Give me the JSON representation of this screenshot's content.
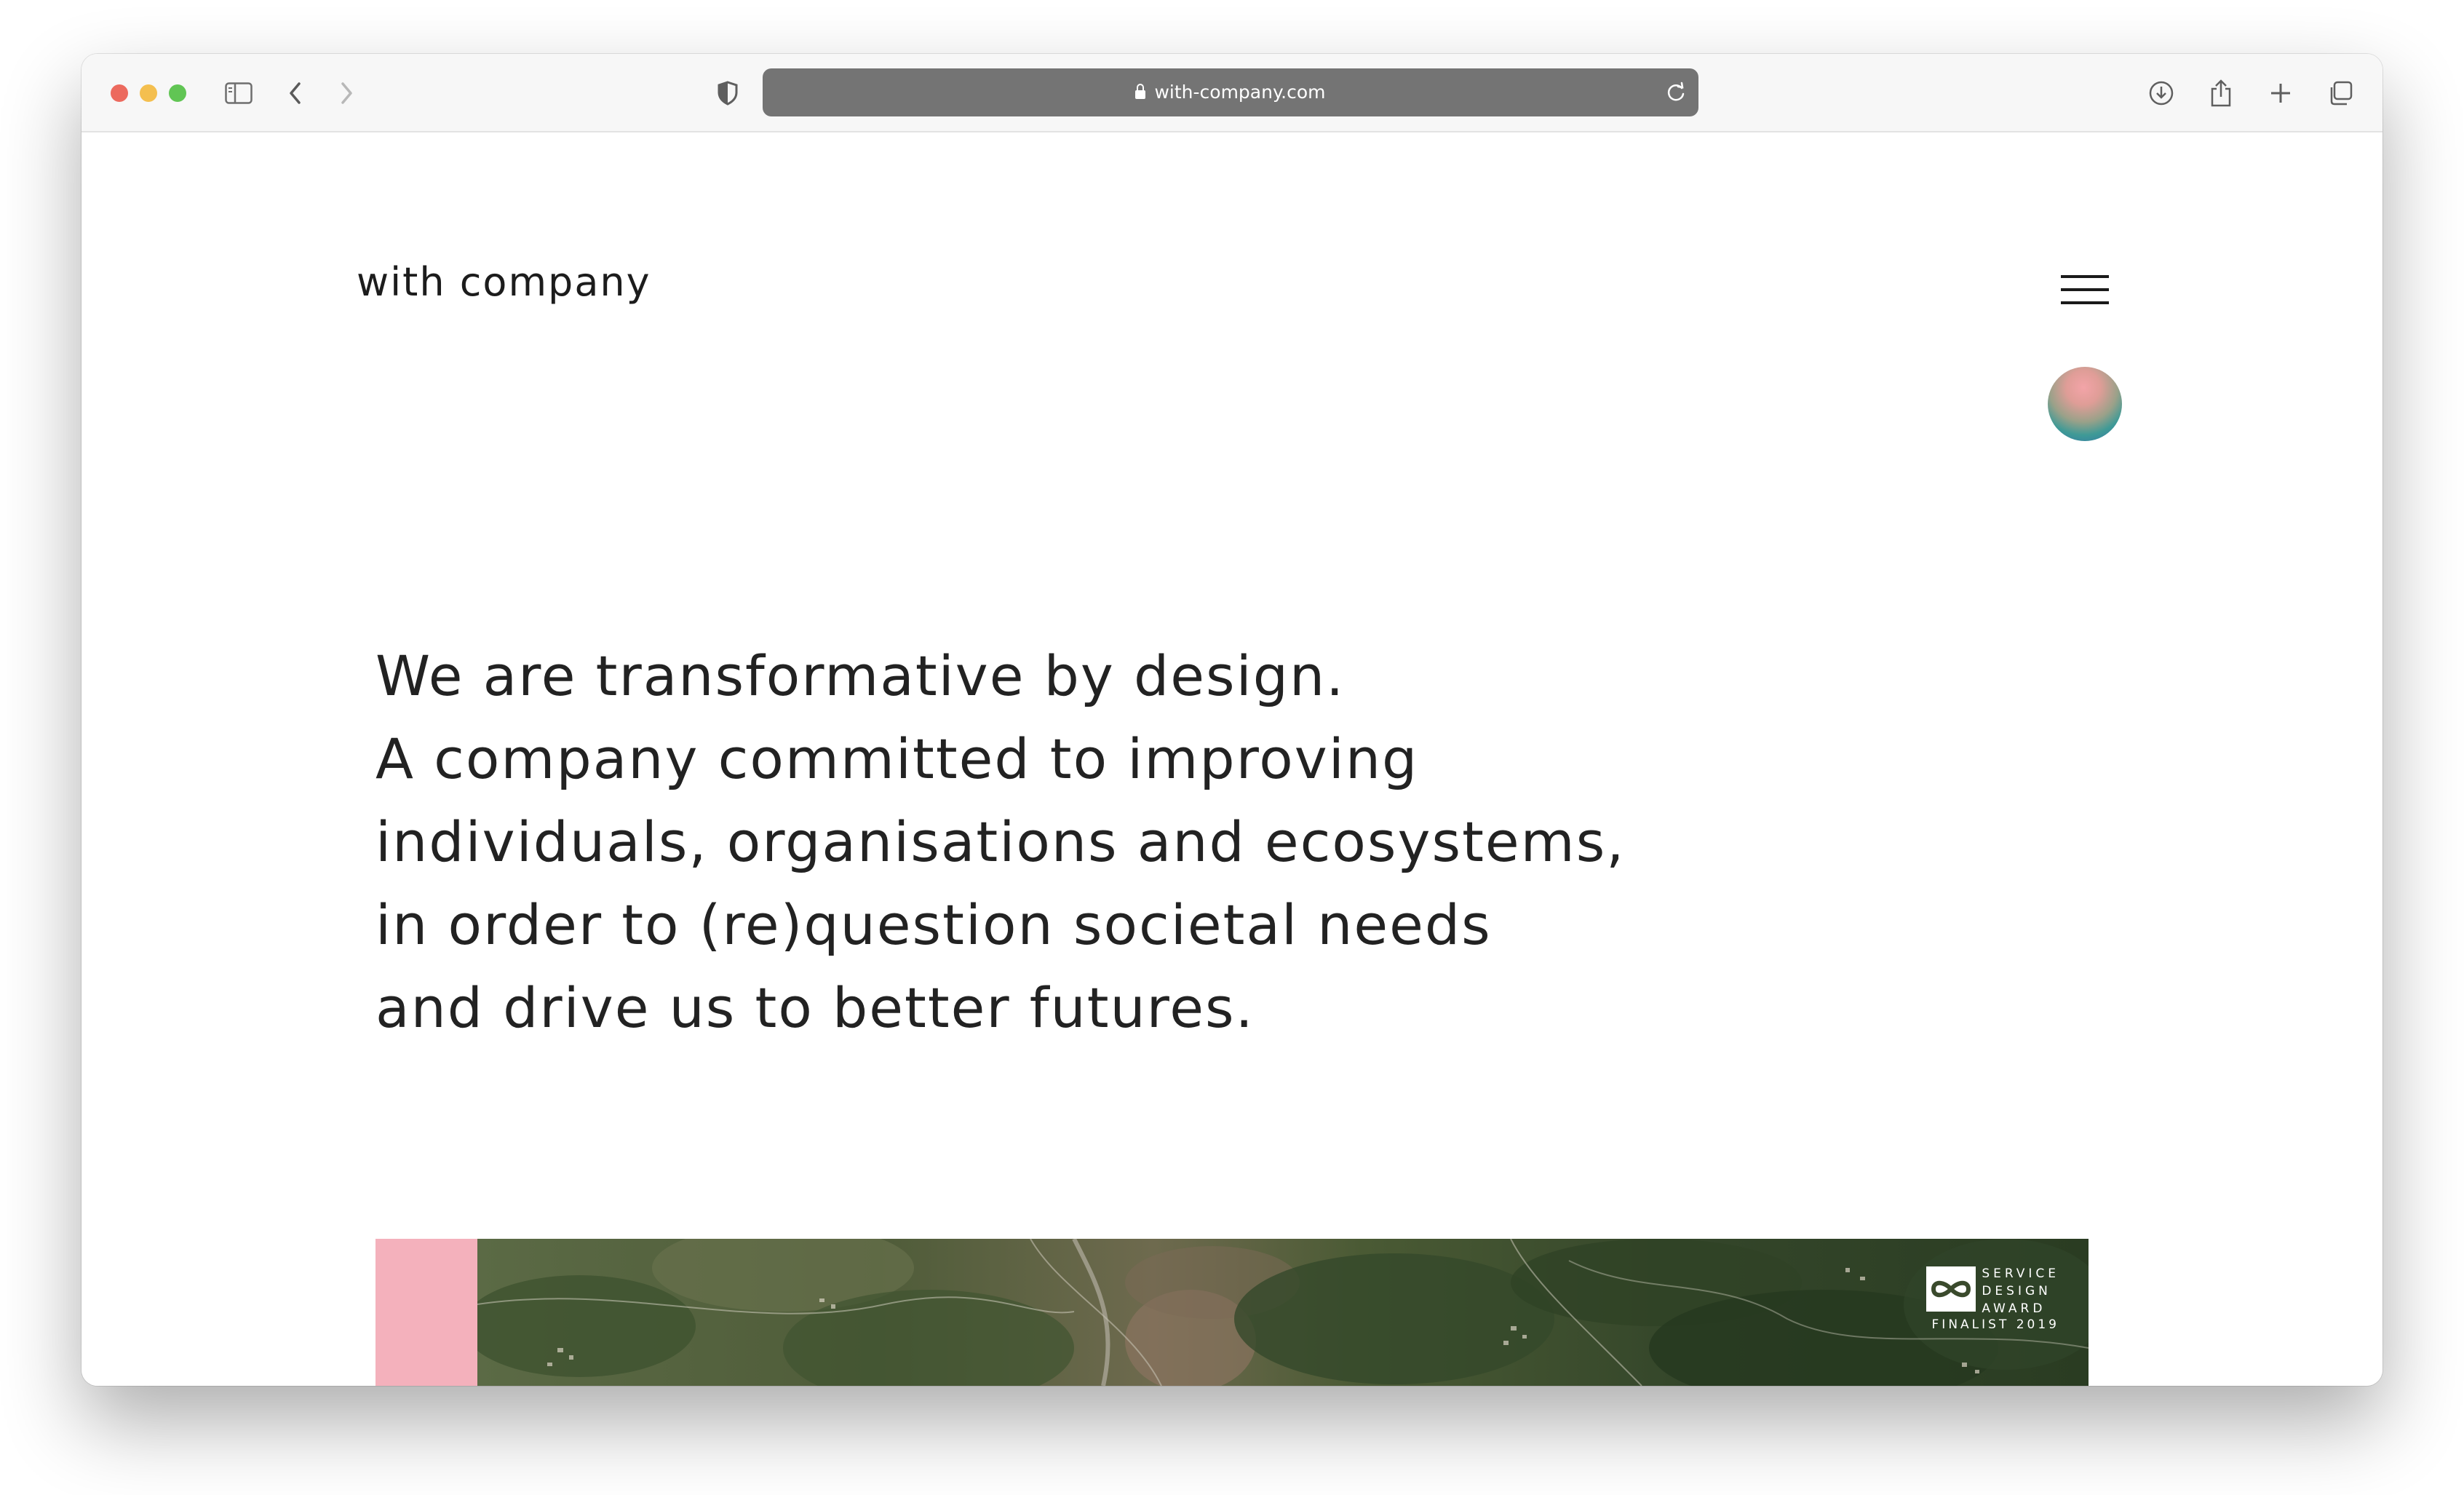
{
  "browser": {
    "url": "with-company.com",
    "traffic_lights": {
      "close": "#ec6a5e",
      "minimize": "#f4bf4f",
      "maximize": "#61c554"
    },
    "toolbar_icons": [
      "sidebar-icon",
      "back-icon",
      "forward-icon",
      "privacy-shield-icon",
      "reload-icon",
      "download-icon",
      "share-icon",
      "new-tab-icon",
      "tab-overview-icon"
    ]
  },
  "site": {
    "logo": "with company",
    "menu_icon": "hamburger-icon",
    "hero_lines": [
      "We are transformative by design.",
      "A company committed to improving",
      "individuals, organisations and ecosystems,",
      "in order to (re)question societal needs",
      "and drive us to better futures."
    ],
    "accent_pink": "#f4b1bc",
    "badge": {
      "line1": "SERVICE",
      "line2": "DESIGN",
      "line3": "AWARD",
      "line4": "FINALIST 2019"
    }
  }
}
